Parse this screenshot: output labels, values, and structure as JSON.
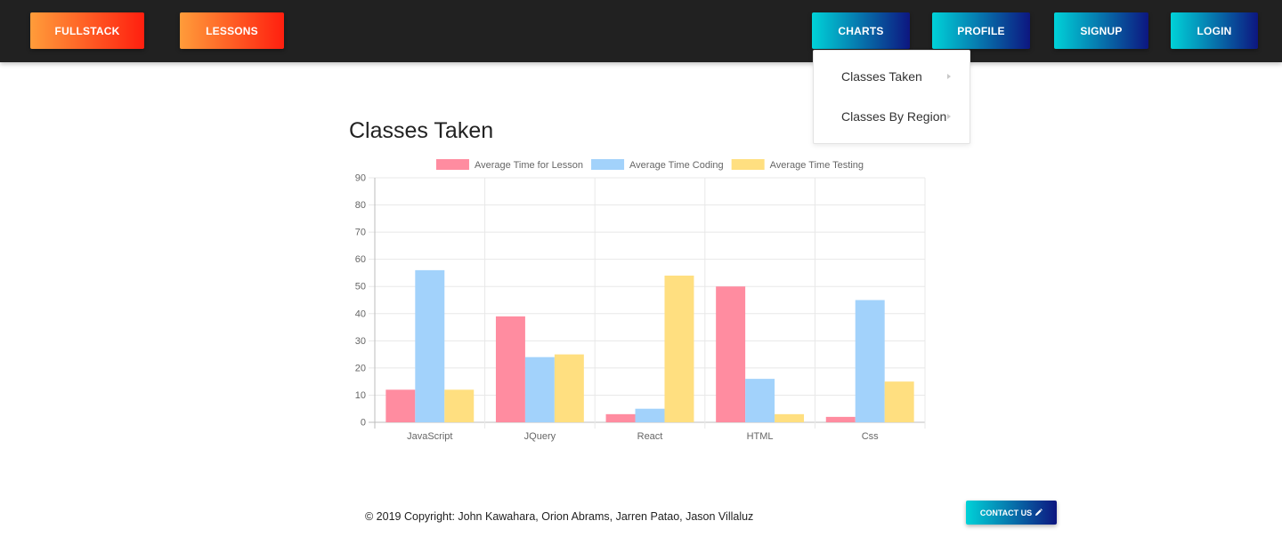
{
  "navbar": {
    "left_buttons": [
      {
        "label": "FULLSTACK"
      },
      {
        "label": "LESSONS"
      }
    ],
    "right_buttons": [
      {
        "label": "CHARTS"
      },
      {
        "label": "PROFILE"
      },
      {
        "label": "SIGNUP"
      },
      {
        "label": "LOGIN"
      }
    ]
  },
  "dropdown": {
    "items": [
      {
        "label": "Classes Taken",
        "icon": "caret-right-icon"
      },
      {
        "label": "Classes By Region",
        "icon": "caret-right-icon"
      }
    ]
  },
  "page": {
    "title": "Classes Taken"
  },
  "chart_data": {
    "type": "bar",
    "title": "",
    "xlabel": "",
    "ylabel": "",
    "categories": [
      "JavaScript",
      "JQuery",
      "React",
      "HTML",
      "Css"
    ],
    "series": [
      {
        "name": "Average Time for Lesson",
        "values": [
          12,
          39,
          3,
          50,
          2
        ],
        "color": "#ff8ca0",
        "border": "#ff6384"
      },
      {
        "name": "Average Time Coding",
        "values": [
          56,
          24,
          5,
          16,
          45
        ],
        "color": "#a2d2fb",
        "border": "#36a2eb"
      },
      {
        "name": "Average Time Testing",
        "values": [
          12,
          25,
          54,
          3,
          15
        ],
        "color": "#ffdf80",
        "border": "#ffce56"
      }
    ],
    "ylim": [
      0,
      90
    ],
    "yticks": [
      0,
      10,
      20,
      30,
      40,
      50,
      60,
      70,
      80,
      90
    ],
    "grid": true,
    "legend": "top"
  },
  "footer": {
    "copyright": "© 2019 Copyright: John Kawahara, Orion Abrams, Jarren Patao, Jason Villaluz",
    "contact_label": "CONTACT US",
    "contact_icon": "pencil-icon"
  },
  "colors": {
    "navbar_bg": "#212121",
    "orange_gradient": [
      "#ff9c3a",
      "#ff1f0f"
    ],
    "blue_gradient": [
      "#00d2d8",
      "#0d1680"
    ]
  }
}
